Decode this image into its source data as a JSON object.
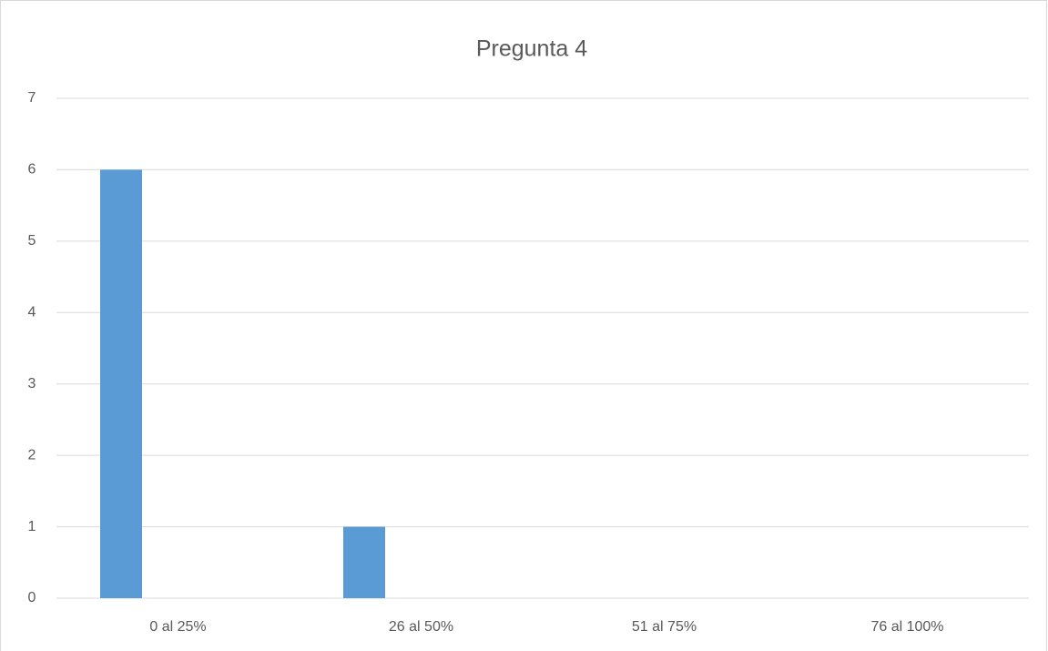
{
  "chart_data": {
    "type": "bar",
    "title": "Pregunta 4",
    "categories": [
      "0 al 25%",
      "26 al 50%",
      "51 al 75%",
      "76 al 100%"
    ],
    "values": [
      6,
      1,
      0,
      0
    ],
    "color": "#5b9bd5",
    "ylim": [
      0,
      7
    ],
    "yticks": [
      0,
      1,
      2,
      3,
      4,
      5,
      6,
      7
    ],
    "grid": true
  }
}
